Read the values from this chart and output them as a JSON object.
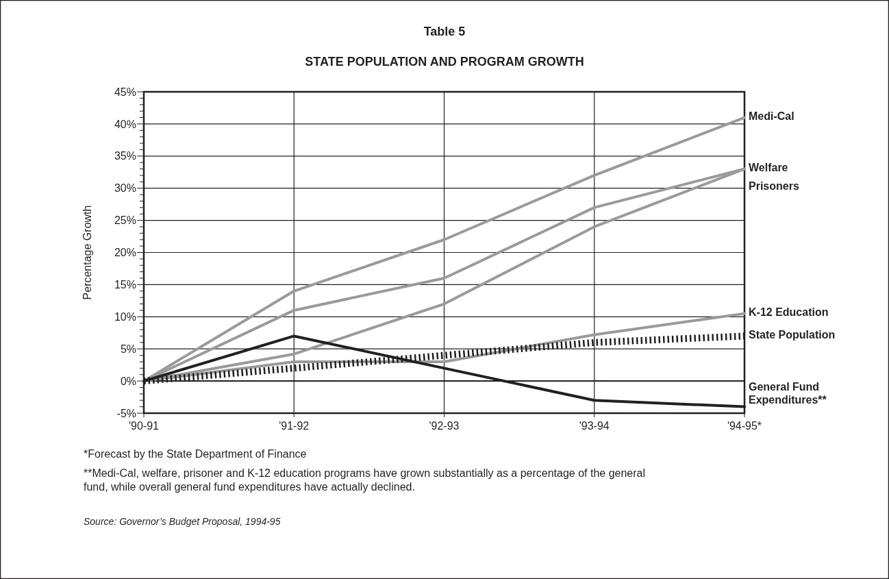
{
  "chart_data": {
    "type": "line",
    "title": "Table 5",
    "subtitle": "STATE POPULATION AND PROGRAM GROWTH",
    "ylabel": "Percentage Growth",
    "categories": [
      "'90-91",
      "'91-92",
      "'92-93",
      "'93-94",
      "'94-95*"
    ],
    "series": [
      {
        "name": "Medi-Cal",
        "color": "#999a9e",
        "values": [
          0,
          14,
          22,
          32,
          41
        ]
      },
      {
        "name": "Welfare",
        "color": "#999a9e",
        "values": [
          0,
          11,
          16,
          27,
          33
        ]
      },
      {
        "name": "Prisoners",
        "color": "#999a9e",
        "values": [
          0,
          4.2,
          12,
          24,
          33
        ]
      },
      {
        "name": "K-12 Education",
        "color": "#999a9e",
        "values": [
          0,
          3,
          3,
          7.2,
          10.5
        ]
      },
      {
        "name": "State Population",
        "color": "#231f20",
        "line_style": "dotted",
        "values": [
          0,
          2,
          4,
          6,
          7
        ]
      },
      {
        "name": "General Fund Expenditures**",
        "color": "#231f20",
        "values": [
          0,
          7,
          2,
          -3,
          -4
        ]
      }
    ],
    "ylim": [
      -5,
      45
    ],
    "yticks": [
      {
        "value": -5,
        "label": "-5%"
      },
      {
        "value": -4,
        "label": null
      },
      {
        "value": -3,
        "label": null
      },
      {
        "value": -2,
        "label": null
      },
      {
        "value": -1,
        "label": null
      },
      {
        "value": 0,
        "label": "0%"
      },
      {
        "value": 1,
        "label": null
      },
      {
        "value": 2,
        "label": null
      },
      {
        "value": 3,
        "label": null
      },
      {
        "value": 4,
        "label": null
      },
      {
        "value": 5,
        "label": "5%"
      },
      {
        "value": 6,
        "label": null
      },
      {
        "value": 7,
        "label": null
      },
      {
        "value": 8,
        "label": null
      },
      {
        "value": 9,
        "label": null
      },
      {
        "value": 10,
        "label": "10%"
      },
      {
        "value": 11,
        "label": null
      },
      {
        "value": 12,
        "label": null
      },
      {
        "value": 13,
        "label": null
      },
      {
        "value": 14,
        "label": null
      },
      {
        "value": 15,
        "label": "15%"
      },
      {
        "value": 16,
        "label": null
      },
      {
        "value": 17,
        "label": null
      },
      {
        "value": 18,
        "label": null
      },
      {
        "value": 19,
        "label": null
      },
      {
        "value": 20,
        "label": "20%"
      },
      {
        "value": 21,
        "label": null
      },
      {
        "value": 22,
        "label": null
      },
      {
        "value": 23,
        "label": null
      },
      {
        "value": 24,
        "label": null
      },
      {
        "value": 25,
        "label": "25%"
      },
      {
        "value": 26,
        "label": null
      },
      {
        "value": 27,
        "label": null
      },
      {
        "value": 28,
        "label": null
      },
      {
        "value": 29,
        "label": null
      },
      {
        "value": 30,
        "label": "30%"
      },
      {
        "value": 31,
        "label": null
      },
      {
        "value": 32,
        "label": null
      },
      {
        "value": 33,
        "label": null
      },
      {
        "value": 34,
        "label": null
      },
      {
        "value": 35,
        "label": "35%"
      },
      {
        "value": 36,
        "label": null
      },
      {
        "value": 37,
        "label": null
      },
      {
        "value": 38,
        "label": null
      },
      {
        "value": 39,
        "label": null
      },
      {
        "value": 40,
        "label": "40%"
      },
      {
        "value": 41,
        "label": null
      },
      {
        "value": 42,
        "label": null
      },
      {
        "value": 43,
        "label": null
      },
      {
        "value": 44,
        "label": null
      },
      {
        "value": 45,
        "label": "45%"
      }
    ],
    "grid": true,
    "marker": "none",
    "annotations": [
      "*Forecast by the State Department of Finance",
      "**Medi-Cal, welfare, prisoner and K-12 education programs have grown substantially as a percentage of the general fund, while overall general fund expenditures have actually declined.",
      "Source: Governor’s Budget Proposal, 1994-95"
    ]
  }
}
